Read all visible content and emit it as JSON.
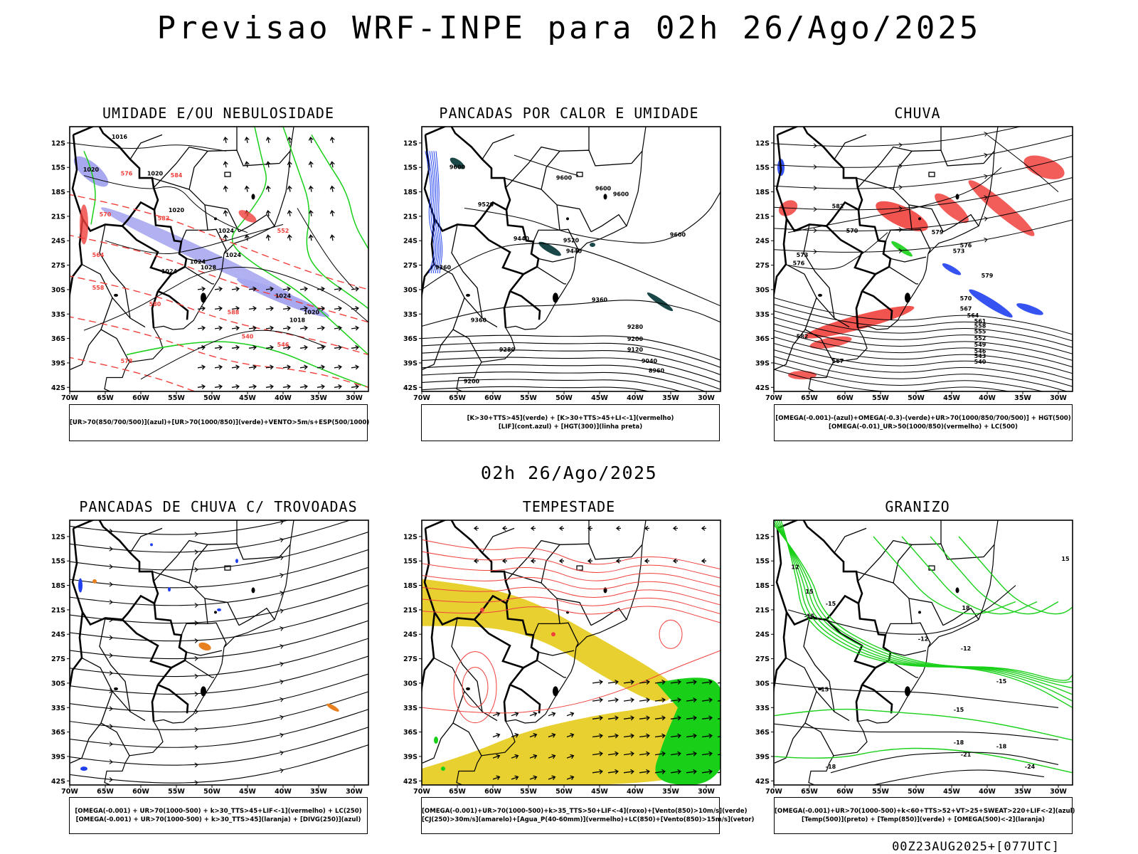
{
  "title": "Previsao WRF-INPE  para 02h 26/Ago/2025",
  "subtitle": "02h 26/Ago/2025",
  "footer": "00Z23AUG2025+[077UTC]",
  "lat_labels": [
    "12S",
    "15S",
    "18S",
    "21S",
    "24S",
    "27S",
    "30S",
    "33S",
    "36S",
    "39S",
    "42S"
  ],
  "lon_labels": [
    "70W",
    "65W",
    "60W",
    "55W",
    "50W",
    "45W",
    "40W",
    "35W",
    "30W"
  ],
  "panels": [
    {
      "title": "UMIDADE E/OU NEBULOSIDADE",
      "legend": [
        "[UR>70(850/700/500)](azul)+[UR>70(1000/850)](verde)+VENTO>5m/s+ESP(500/1000)"
      ],
      "contour_labels": [
        "1016",
        "1020",
        "1020",
        "1024",
        "1024",
        "1024",
        "1024",
        "1028",
        "1024",
        "1020",
        "1018",
        "1020",
        "584",
        "582",
        "580",
        "578",
        "552",
        "546",
        "540",
        "588",
        "576",
        "570",
        "564",
        "558"
      ]
    },
    {
      "title": "PANCADAS POR CALOR E UMIDADE",
      "legend": [
        "[K>30+TTS>45](verde) + [K>30+TTS>45+LI<-1](vermelho)",
        "[LIF](cont.azul) + [HGT(300)](linha preta)"
      ],
      "contour_labels": [
        "9600",
        "9600",
        "9600",
        "9600",
        "9600",
        "9520",
        "9520",
        "9440",
        "9440",
        "9360",
        "9360",
        "9280",
        "9200",
        "9120",
        "9040",
        "8960",
        "9360",
        "9280",
        "9200"
      ]
    },
    {
      "title": "CHUVA",
      "legend": [
        "[OMEGA(-0.001)-(azul)+OMEGA(-0.3)-(verde)+UR>70(1000/850/700/500)] + HGT(500)",
        "[OMEGA(-0.01)_UR>50(1000/850)(vermelho) + LC(500)"
      ],
      "contour_labels": [
        "582",
        "579",
        "576",
        "573",
        "570",
        "567",
        "564",
        "561",
        "558",
        "555",
        "552",
        "549",
        "546",
        "543",
        "540",
        "576",
        "573",
        "570",
        "567",
        "582",
        "579"
      ]
    },
    {
      "title": "PANCADAS DE CHUVA C/ TROVOADAS",
      "legend": [
        "[OMEGA(-0.001) + UR>70(1000-500) + k>30_TTS>45+LIF<-1](vermelho) + LC(250)",
        "[OMEGA(-0.001) + UR>70(1000-500) + k>30_TTS>45](laranja) + [DIVG(250)](azul)"
      ],
      "contour_labels": []
    },
    {
      "title": "TEMPESTADE",
      "legend": [
        "[OMEGA(-0.001)+UR>70(1000-500)+k>35_TTS>50+LIF<-4](roxo)+[Vento(850)>10m/s](verde)",
        "[CJ(250)>30m/s](amarelo)+[Agua_P(40-60mm)](vermelho)+LC(850)+[Vento(850)>15m/s](vetor)"
      ],
      "contour_labels": []
    },
    {
      "title": "GRANIZO",
      "legend": [
        "[OMEGA(-0.001)+UR>70(1000-500)+k<60+TTS>52+VT>25+SWEAT>220+LIF<-2](azul)",
        "[Temp(500)](preto) + [Temp(850)](verde) + [OMEGA(500)<-2](laranja)"
      ],
      "contour_labels": [
        "-15",
        "-15",
        "-12",
        "-12",
        "-15",
        "-15",
        "-18",
        "-18",
        "-21",
        "-24",
        "-18",
        "-15",
        "12",
        "15",
        "18",
        "15"
      ]
    }
  ],
  "colors": {
    "red": "#f0403c",
    "green": "#18d018",
    "blue": "#2040f0",
    "lavender": "#a8a8f0",
    "yellow": "#e8d030",
    "orange": "#e88020",
    "teal": "#1a4848",
    "black": "#000000"
  }
}
